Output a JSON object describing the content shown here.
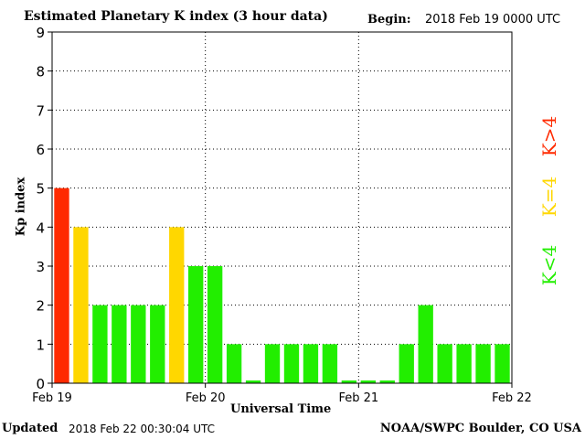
{
  "header": {
    "title": "Estimated Planetary K index (3 hour data)",
    "begin_label": "Begin:",
    "begin_value": "2018 Feb 19 0000 UTC"
  },
  "footer": {
    "updated_label": "Updated",
    "updated_value": "2018 Feb 22 00:30:04 UTC",
    "credit": "NOAA/SWPC Boulder, CO USA"
  },
  "colors": {
    "high": "#ff2a00",
    "equal": "#ffd700",
    "low": "#22ee00"
  },
  "legend": {
    "high": "K>4",
    "equal": "K=4",
    "low": "K<4"
  },
  "chart_data": {
    "type": "bar",
    "title": "Estimated Planetary K index (3 hour data)",
    "xlabel": "Universal Time",
    "ylabel": "Kp index",
    "ylim": [
      0,
      9
    ],
    "yticks": [
      "0",
      "1",
      "2",
      "3",
      "4",
      "5",
      "6",
      "7",
      "8",
      "9"
    ],
    "xticks": [
      "Feb 19",
      "Feb 20",
      "Feb 21",
      "Feb 22"
    ],
    "grid": true,
    "values": [
      5,
      4,
      2,
      2,
      2,
      2,
      4,
      3,
      3,
      1,
      0.07,
      1,
      1,
      1,
      1,
      0.07,
      0.07,
      0.07,
      1,
      2,
      1,
      1,
      1,
      1
    ]
  }
}
